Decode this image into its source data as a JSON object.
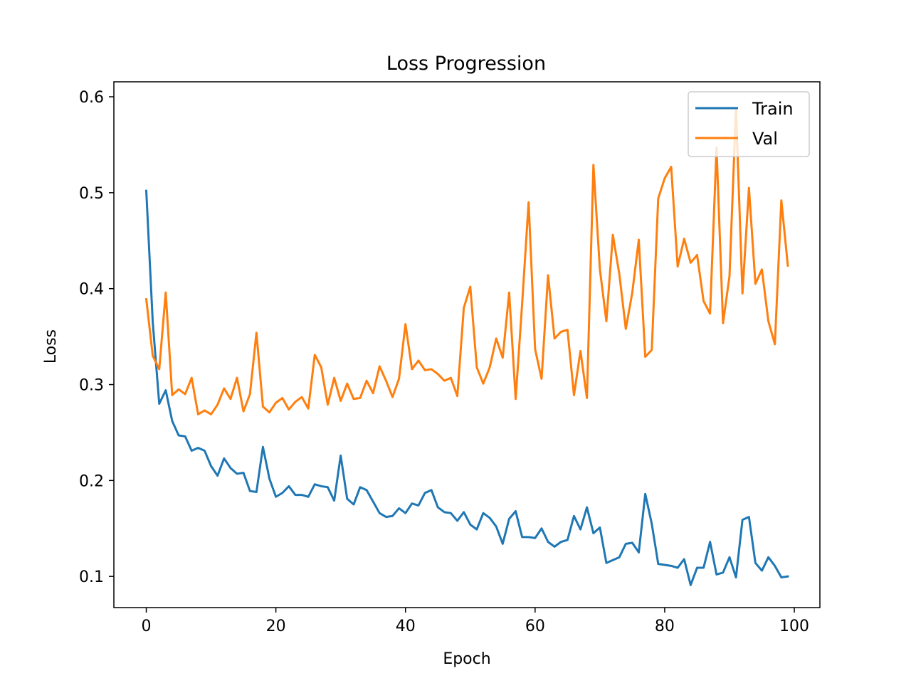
{
  "chart_data": {
    "type": "line",
    "title": "Loss Progression",
    "xlabel": "Epoch",
    "ylabel": "Loss",
    "xlim": [
      -5,
      103.95
    ],
    "ylim": [
      0.0675,
      0.6156
    ],
    "xticks": [
      0,
      20,
      40,
      60,
      80,
      100
    ],
    "yticks": [
      0.1,
      0.2,
      0.3,
      0.4,
      0.5,
      0.6
    ],
    "xtick_labels": [
      "0",
      "20",
      "40",
      "60",
      "80",
      "100"
    ],
    "ytick_labels": [
      "0.1",
      "0.2",
      "0.3",
      "0.4",
      "0.5",
      "0.6"
    ],
    "grid": false,
    "legend": {
      "position": "top-right"
    },
    "x": [
      0,
      1,
      2,
      3,
      4,
      5,
      6,
      7,
      8,
      9,
      10,
      11,
      12,
      13,
      14,
      15,
      16,
      17,
      18,
      19,
      20,
      21,
      22,
      23,
      24,
      25,
      26,
      27,
      28,
      29,
      30,
      31,
      32,
      33,
      34,
      35,
      36,
      37,
      38,
      39,
      40,
      41,
      42,
      43,
      44,
      45,
      46,
      47,
      48,
      49,
      50,
      51,
      52,
      53,
      54,
      55,
      56,
      57,
      58,
      59,
      60,
      61,
      62,
      63,
      64,
      65,
      66,
      67,
      68,
      69,
      70,
      71,
      72,
      73,
      74,
      75,
      76,
      77,
      78,
      79,
      80,
      81,
      82,
      83,
      84,
      85,
      86,
      87,
      88,
      89,
      90,
      91,
      92,
      93,
      94,
      95,
      96,
      97,
      98,
      99
    ],
    "series": [
      {
        "name": "Train",
        "color": "#1f77b4",
        "values": [
          0.502,
          0.365,
          0.28,
          0.294,
          0.262,
          0.247,
          0.246,
          0.231,
          0.234,
          0.231,
          0.215,
          0.205,
          0.223,
          0.213,
          0.207,
          0.208,
          0.189,
          0.188,
          0.235,
          0.202,
          0.183,
          0.187,
          0.194,
          0.185,
          0.185,
          0.183,
          0.196,
          0.194,
          0.193,
          0.179,
          0.226,
          0.181,
          0.175,
          0.193,
          0.19,
          0.178,
          0.166,
          0.162,
          0.163,
          0.171,
          0.166,
          0.176,
          0.174,
          0.187,
          0.19,
          0.172,
          0.167,
          0.166,
          0.158,
          0.167,
          0.154,
          0.149,
          0.166,
          0.161,
          0.152,
          0.134,
          0.16,
          0.168,
          0.141,
          0.141,
          0.14,
          0.15,
          0.136,
          0.131,
          0.136,
          0.138,
          0.163,
          0.149,
          0.172,
          0.145,
          0.151,
          0.114,
          0.117,
          0.12,
          0.134,
          0.135,
          0.125,
          0.186,
          0.155,
          0.113,
          0.112,
          0.111,
          0.109,
          0.118,
          0.091,
          0.109,
          0.109,
          0.136,
          0.102,
          0.104,
          0.12,
          0.099,
          0.159,
          0.162,
          0.114,
          0.106,
          0.12,
          0.111,
          0.099,
          0.1
        ]
      },
      {
        "name": "Val",
        "color": "#ff7f0e",
        "values": [
          0.389,
          0.33,
          0.316,
          0.396,
          0.289,
          0.295,
          0.29,
          0.307,
          0.269,
          0.273,
          0.269,
          0.279,
          0.296,
          0.285,
          0.307,
          0.272,
          0.29,
          0.354,
          0.277,
          0.271,
          0.281,
          0.286,
          0.274,
          0.282,
          0.287,
          0.275,
          0.331,
          0.318,
          0.279,
          0.307,
          0.283,
          0.301,
          0.285,
          0.286,
          0.304,
          0.291,
          0.319,
          0.304,
          0.287,
          0.306,
          0.363,
          0.316,
          0.325,
          0.315,
          0.316,
          0.311,
          0.304,
          0.307,
          0.288,
          0.38,
          0.402,
          0.318,
          0.301,
          0.318,
          0.348,
          0.328,
          0.396,
          0.285,
          0.384,
          0.49,
          0.337,
          0.306,
          0.414,
          0.348,
          0.355,
          0.357,
          0.289,
          0.335,
          0.286,
          0.529,
          0.42,
          0.366,
          0.456,
          0.415,
          0.358,
          0.396,
          0.451,
          0.329,
          0.336,
          0.494,
          0.515,
          0.527,
          0.423,
          0.452,
          0.427,
          0.435,
          0.387,
          0.374,
          0.547,
          0.364,
          0.413,
          0.588,
          0.395,
          0.505,
          0.405,
          0.42,
          0.366,
          0.342,
          0.492,
          0.424
        ]
      }
    ]
  }
}
